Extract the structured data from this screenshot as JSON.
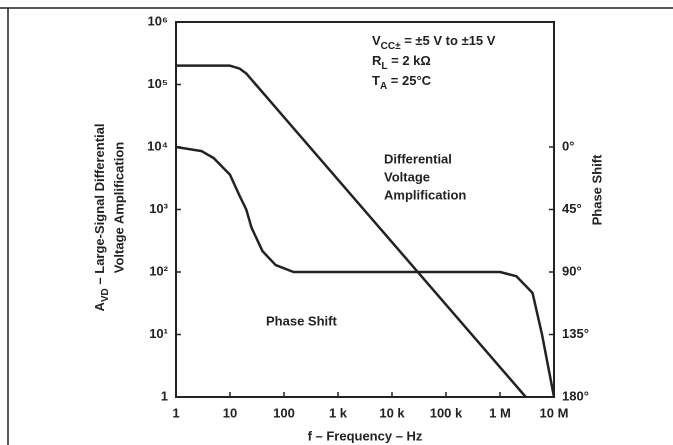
{
  "chart_data": {
    "type": "line",
    "x_label": "f – Frequency – Hz",
    "y_label": {
      "main": "A",
      "sub": "VD",
      "rest": " – Large-Signal Differential",
      "line2": "Voltage Amplification"
    },
    "y2_label": "Phase Shift",
    "xscale": "log",
    "yscale": "log",
    "xlim": [
      1,
      10000000
    ],
    "ylim": [
      1,
      1000000
    ],
    "y2lim": [
      180,
      -90
    ],
    "xticks": [
      1,
      10,
      100,
      {
        "value": 1000,
        "label": "1 k"
      },
      {
        "value": 10000,
        "label": "10 k"
      },
      {
        "value": 100000,
        "label": "100 k"
      },
      {
        "value": 1000000,
        "label": "1 M"
      },
      {
        "value": 10000000,
        "label": "10 M"
      }
    ],
    "yticks": [
      1,
      {
        "value": 10,
        "label": "10¹"
      },
      {
        "value": 100,
        "label": "10²"
      },
      {
        "value": 1000,
        "label": "10³"
      },
      {
        "value": 10000,
        "label": "10⁴"
      },
      {
        "value": 100000,
        "label": "10⁵"
      },
      {
        "value": 1000000,
        "label": "10⁶"
      }
    ],
    "y2ticks": [
      {
        "value": 0,
        "label": "0°"
      },
      {
        "value": 45,
        "label": "45°"
      },
      {
        "value": 90,
        "label": "90°"
      },
      {
        "value": 135,
        "label": "135°"
      },
      {
        "value": 180,
        "label": "180°"
      }
    ],
    "conditions": [
      {
        "main": "V",
        "sub": "CC±",
        "rest": " = ±5 V to ±15 V"
      },
      {
        "main": "R",
        "sub": "L",
        "rest": " = 2 kΩ"
      },
      {
        "main": "T",
        "sub": "A",
        "rest": " = 25°C"
      }
    ],
    "curve_labels": [
      [
        "Differential",
        "Voltage",
        "Amplification"
      ],
      [
        "Phase Shift"
      ]
    ],
    "series": [
      {
        "name": "Differential Voltage Amplification",
        "color": "#222222",
        "x": [
          1,
          10,
          15,
          20,
          30,
          50,
          100,
          1000,
          10000,
          100000,
          1000000,
          3000000
        ],
        "values": [
          200000,
          200000,
          180000,
          150000,
          100000,
          60000,
          30000,
          3000,
          300,
          30,
          3,
          1
        ]
      },
      {
        "name": "Phase Shift",
        "color": "#222222",
        "axis": "y2",
        "x": [
          1,
          3,
          5,
          10,
          15,
          20,
          25,
          40,
          70,
          150,
          1000000,
          2000000,
          4000000,
          6000000,
          10000000
        ],
        "values": [
          0,
          3,
          8,
          20,
          35,
          45,
          58,
          75,
          85,
          90,
          90,
          93,
          105,
          135,
          180
        ]
      }
    ]
  }
}
